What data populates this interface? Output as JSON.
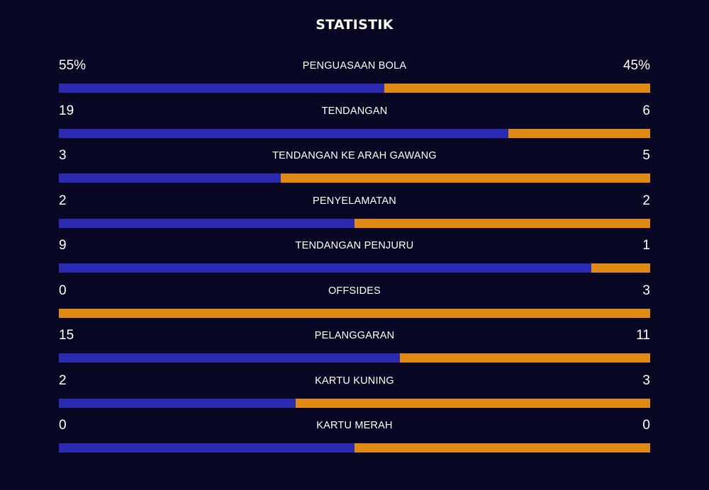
{
  "title": "STATISTIK",
  "colors": {
    "background": "#080723",
    "home_bar": "#2b2ab2",
    "away_bar": "#e08a13",
    "text": "#ffffff"
  },
  "stats": [
    {
      "label": "PENGUASAAN BOLA",
      "home": "55%",
      "away": "45%",
      "home_share": 0.55
    },
    {
      "label": "TENDANGAN",
      "home": "19",
      "away": "6",
      "home_share": 0.76
    },
    {
      "label": "TENDANGAN KE ARAH GAWANG",
      "home": "3",
      "away": "5",
      "home_share": 0.375
    },
    {
      "label": "PENYELAMATAN",
      "home": "2",
      "away": "2",
      "home_share": 0.5
    },
    {
      "label": "TENDANGAN PENJURU",
      "home": "9",
      "away": "1",
      "home_share": 0.9
    },
    {
      "label": "OFFSIDES",
      "home": "0",
      "away": "3",
      "home_share": 0
    },
    {
      "label": "PELANGGARAN",
      "home": "15",
      "away": "11",
      "home_share": 0.577
    },
    {
      "label": "KARTU KUNING",
      "home": "2",
      "away": "3",
      "home_share": 0.4
    },
    {
      "label": "KARTU MERAH",
      "home": "0",
      "away": "0",
      "home_share": 0.5
    }
  ]
}
